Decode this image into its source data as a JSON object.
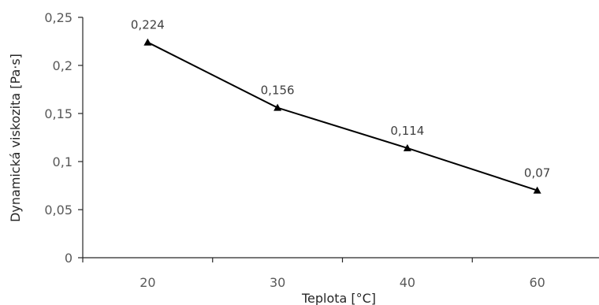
{
  "chart_data": {
    "type": "line",
    "categories": [
      "20",
      "30",
      "40",
      "60"
    ],
    "series": [
      {
        "values": [
          0.224,
          0.156,
          0.114,
          0.07
        ]
      }
    ],
    "data_labels": [
      "0,224",
      "0,156",
      "0,114",
      "0,07"
    ],
    "xlabel": "Teplota   [°C]",
    "ylabel": "Dynamická viskozita   [Pa·s]",
    "ylim": [
      0,
      0.25
    ],
    "yticks": [
      0,
      0.05,
      0.1,
      0.15,
      0.2,
      0.25
    ],
    "ytick_labels": [
      "0",
      "0,05",
      "0,1",
      "0,15",
      "0,2",
      "0,25"
    ],
    "grid": false,
    "legend": "none",
    "marker": "triangle",
    "line_color": "#000000"
  }
}
